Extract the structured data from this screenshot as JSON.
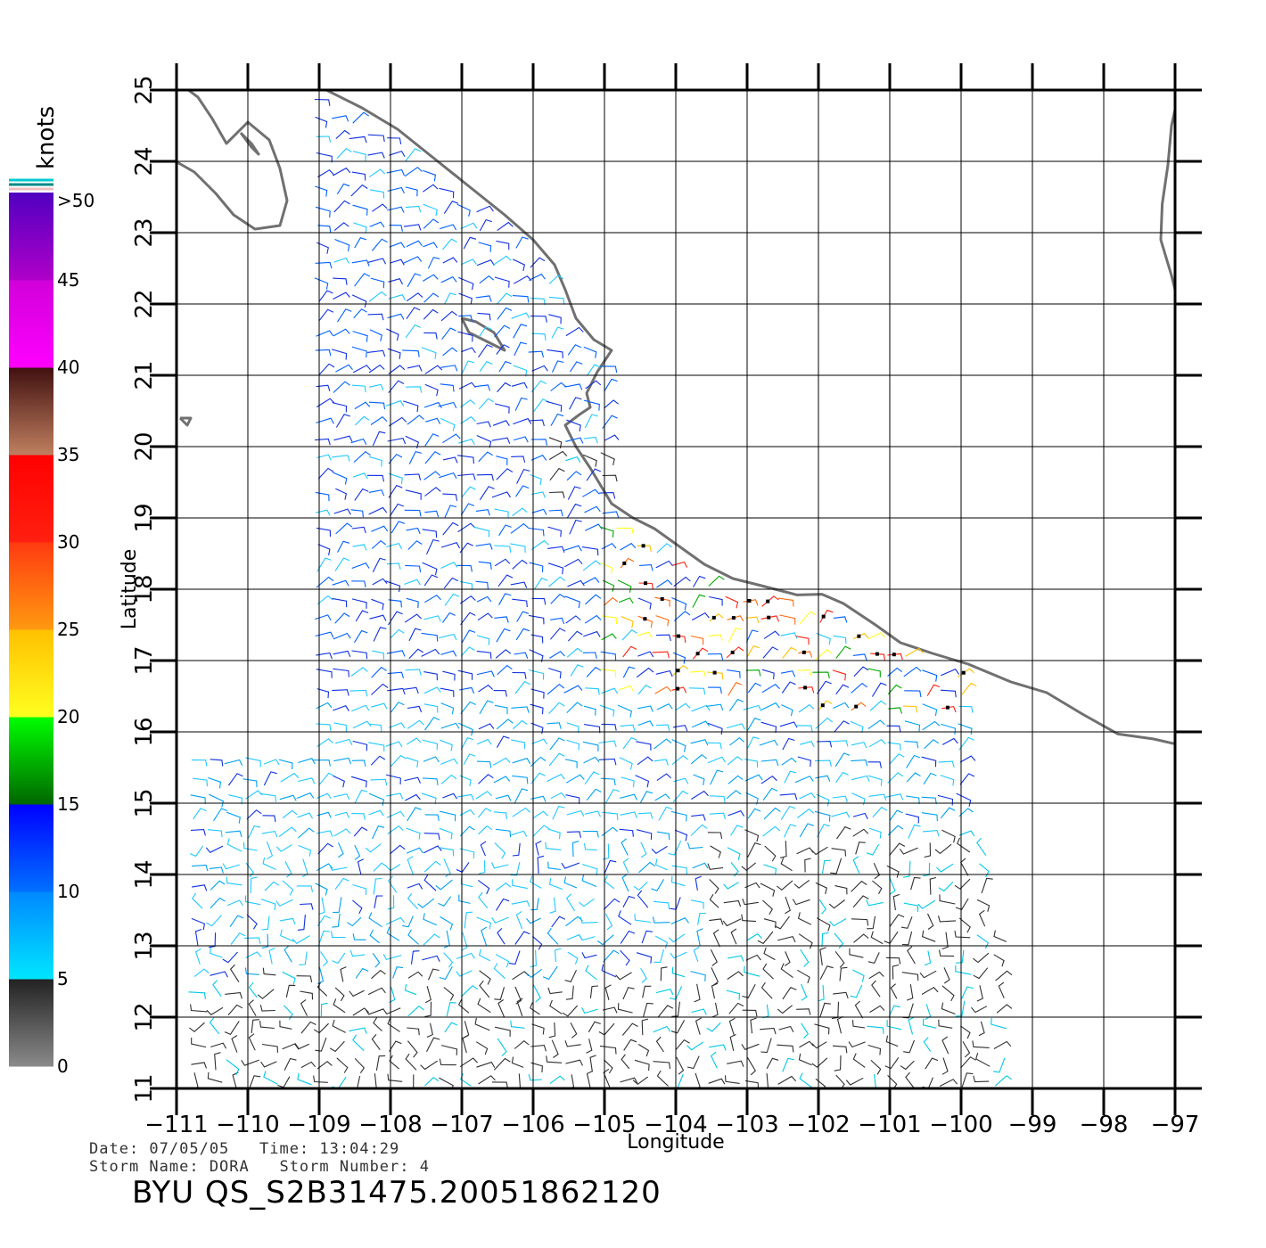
{
  "map": {
    "lon_ticks": [
      "-111",
      "-110",
      "-109",
      "-108",
      "-107",
      "-106",
      "-105",
      "-104",
      "-103",
      "-102",
      "-101",
      "-100",
      "-99",
      "-98",
      "-97"
    ],
    "lat_ticks": [
      "11",
      "12",
      "13",
      "14",
      "15",
      "16",
      "17",
      "18",
      "19",
      "20",
      "21",
      "22",
      "23",
      "24",
      "25"
    ],
    "lon_range": [
      -111,
      -97
    ],
    "lat_range": [
      11,
      25
    ],
    "xlabel": "Longitude",
    "ylabel": "Latitude",
    "grid": true
  },
  "colorbar": {
    "unit": "knots",
    "labels": [
      ">50",
      "45",
      "40",
      "35",
      "30",
      "25",
      "20",
      "15",
      "10",
      "5",
      "0"
    ],
    "bands": [
      {
        "from": 0,
        "to": 5,
        "colors": [
          "#8a8a8a",
          "#222222"
        ]
      },
      {
        "from": 5,
        "to": 10,
        "colors": [
          "#00e6ff",
          "#0088ff"
        ]
      },
      {
        "from": 10,
        "to": 15,
        "colors": [
          "#0070ff",
          "#0000ff"
        ]
      },
      {
        "from": 15,
        "to": 20,
        "colors": [
          "#006600",
          "#00ff00"
        ]
      },
      {
        "from": 20,
        "to": 25,
        "colors": [
          "#ffff20",
          "#ffc000"
        ]
      },
      {
        "from": 25,
        "to": 30,
        "colors": [
          "#ff9a10",
          "#ff3a10"
        ]
      },
      {
        "from": 30,
        "to": 35,
        "colors": [
          "#ff2010",
          "#ff0000"
        ]
      },
      {
        "from": 35,
        "to": 40,
        "colors": [
          "#c08060",
          "#401010"
        ]
      },
      {
        "from": 40,
        "to": 45,
        "colors": [
          "#ff00ff",
          "#d000d8"
        ]
      },
      {
        "from": 45,
        "to": 50,
        "colors": [
          "#b000c8",
          "#5000c0"
        ]
      }
    ]
  },
  "info": {
    "date_line": "Date: 07/05/05   Time: 13:04:29",
    "storm_line": "Storm Name: DORA   Storm Number: 4",
    "product": "BYU QS_S2B31475.20051862120"
  }
}
